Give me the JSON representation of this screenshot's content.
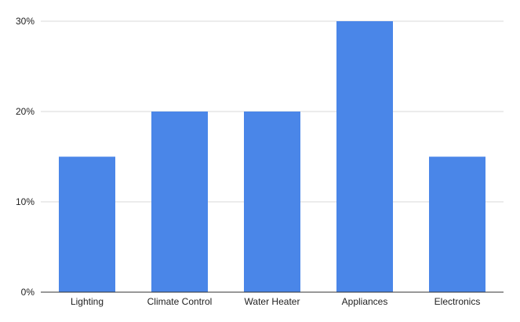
{
  "chart_data": {
    "type": "bar",
    "title": "",
    "xlabel": "",
    "ylabel": "",
    "categories": [
      "Lighting",
      "Climate Control",
      "Water Heater",
      "Appliances",
      "Electronics"
    ],
    "values": [
      15,
      20,
      20,
      30,
      15
    ],
    "unit": "%",
    "ylim": [
      0,
      30
    ],
    "yticks": [
      0,
      10,
      20,
      30
    ],
    "ytick_labels": [
      "0%",
      "10%",
      "20%",
      "30%"
    ],
    "grid": true,
    "legend": "none",
    "colors": {
      "bar": "#4a86e8"
    }
  }
}
